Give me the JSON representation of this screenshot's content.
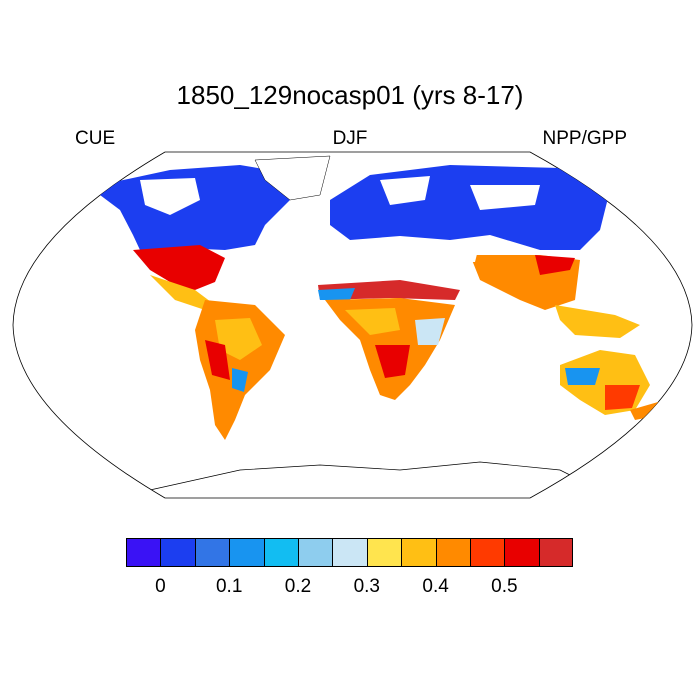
{
  "title": "1850_129nocasp01 (yrs 8-17)",
  "left_label": "CUE",
  "center_label": "DJF",
  "right_label": "NPP/GPP",
  "colorbar": {
    "colors": [
      "#3a12f5",
      "#1c3ef0",
      "#3275e6",
      "#1894f0",
      "#12bdf2",
      "#8ecdee",
      "#cbe6f5",
      "#ffe44e",
      "#ffbf14",
      "#ff8a00",
      "#ff3a00",
      "#e80000",
      "#d62a2a"
    ],
    "tick_labels": [
      "0",
      "0.1",
      "0.2",
      "0.3",
      "0.4",
      "0.5"
    ]
  }
}
